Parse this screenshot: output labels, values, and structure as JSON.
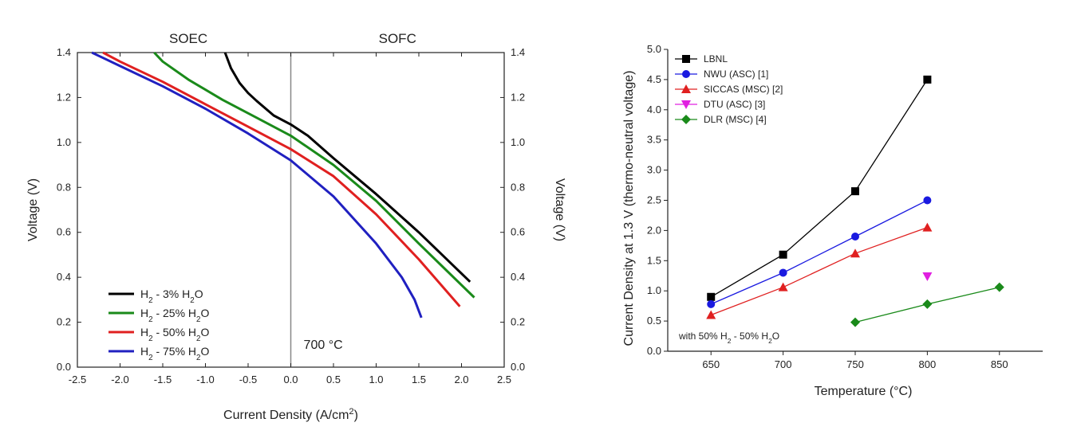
{
  "chart_data": [
    {
      "type": "line",
      "title": "",
      "xlabel": "Current Density (A/cm",
      "xlabel_sup": "2",
      "xlabel_end": ")",
      "ylabel": "Voltage (V)",
      "ylabel_right": "Voltage (V)",
      "xlim": [
        -2.5,
        2.5
      ],
      "ylim": [
        0.0,
        1.4
      ],
      "xticks": [
        "-2.5",
        "-2.0",
        "-1.5",
        "-1.0",
        "-0.5",
        "0.0",
        "0.5",
        "1.0",
        "1.5",
        "2.0",
        "2.5"
      ],
      "yticks": [
        "0.0",
        "0.2",
        "0.4",
        "0.6",
        "0.8",
        "1.0",
        "1.2",
        "1.4"
      ],
      "regions": [
        "SOEC",
        "SOFC"
      ],
      "annotation": "700 °C",
      "series": [
        {
          "name": "H2 - 3% H2O",
          "color": "#000000",
          "x": [
            -0.77,
            -0.7,
            -0.6,
            -0.5,
            -0.4,
            -0.2,
            0.0,
            0.2,
            0.5,
            1.0,
            1.5,
            2.1
          ],
          "y": [
            1.4,
            1.33,
            1.265,
            1.22,
            1.185,
            1.12,
            1.08,
            1.03,
            0.93,
            0.77,
            0.6,
            0.38
          ]
        },
        {
          "name": "H2 - 25% H2O",
          "color": "#1a8a1a",
          "x": [
            -1.6,
            -1.5,
            -1.2,
            -0.8,
            -0.4,
            0.0,
            0.5,
            1.0,
            1.5,
            2.15
          ],
          "y": [
            1.4,
            1.36,
            1.28,
            1.19,
            1.11,
            1.03,
            0.9,
            0.74,
            0.55,
            0.31
          ]
        },
        {
          "name": "H2 - 50% H2O",
          "color": "#e02020",
          "x": [
            -2.2,
            -2.0,
            -1.5,
            -1.0,
            -0.5,
            0.0,
            0.5,
            1.0,
            1.5,
            1.98
          ],
          "y": [
            1.4,
            1.36,
            1.27,
            1.17,
            1.07,
            0.97,
            0.85,
            0.68,
            0.48,
            0.27
          ]
        },
        {
          "name": "H2 - 75% H2O",
          "color": "#2020c0",
          "x": [
            -2.33,
            -2.0,
            -1.5,
            -1.0,
            -0.5,
            0.0,
            0.5,
            1.0,
            1.3,
            1.45,
            1.53
          ],
          "y": [
            1.4,
            1.34,
            1.25,
            1.15,
            1.04,
            0.92,
            0.76,
            0.55,
            0.4,
            0.3,
            0.22
          ]
        }
      ],
      "legend": [
        {
          "base": "H",
          "sub": "2",
          "mid": " - 3% H",
          "sub2": "2",
          "end": "O"
        },
        {
          "base": "H",
          "sub": "2",
          "mid": " - 25% H",
          "sub2": "2",
          "end": "O"
        },
        {
          "base": "H",
          "sub": "2",
          "mid": " - 50% H",
          "sub2": "2",
          "end": "O"
        },
        {
          "base": "H",
          "sub": "2",
          "mid": " - 75% H",
          "sub2": "2",
          "end": "O"
        }
      ],
      "legend_position": "bottom-left"
    },
    {
      "type": "line",
      "title": "",
      "xlabel": "Temperature (°C)",
      "ylabel": "Current Density at 1.3 V (thermo-neutral voltage)",
      "xlim": [
        620,
        880
      ],
      "ylim": [
        0.0,
        5.0
      ],
      "xticks": [
        "650",
        "700",
        "750",
        "800",
        "850"
      ],
      "yticks": [
        "0.0",
        "0.5",
        "1.0",
        "1.5",
        "2.0",
        "2.5",
        "3.0",
        "3.5",
        "4.0",
        "4.5",
        "5.0"
      ],
      "annotation": {
        "a": "with 50% H",
        "sub": "2",
        "b": " - 50% H",
        "sub2": "2",
        "c": "O"
      },
      "series": [
        {
          "name": "LBNL",
          "color": "#000000",
          "marker": "square",
          "x": [
            650,
            700,
            750,
            800
          ],
          "y": [
            0.9,
            1.6,
            2.65,
            4.5
          ]
        },
        {
          "name": "NWU (ASC) [1]",
          "color": "#1a1ae0",
          "marker": "circle",
          "x": [
            650,
            700,
            750,
            800
          ],
          "y": [
            0.78,
            1.3,
            1.9,
            2.5
          ]
        },
        {
          "name": "SICCAS (MSC) [2]",
          "color": "#e02020",
          "marker": "triangle-up",
          "x": [
            650,
            700,
            750,
            800
          ],
          "y": [
            0.6,
            1.06,
            1.62,
            2.05
          ]
        },
        {
          "name": "DTU (ASC) [3]",
          "color": "#e020e0",
          "marker": "triangle-down",
          "x": [
            800
          ],
          "y": [
            1.24
          ]
        },
        {
          "name": "DLR (MSC) [4]",
          "color": "#1a8a1a",
          "marker": "diamond",
          "x": [
            750,
            800,
            850
          ],
          "y": [
            0.48,
            0.78,
            1.06
          ]
        }
      ],
      "legend_position": "top-left"
    }
  ]
}
